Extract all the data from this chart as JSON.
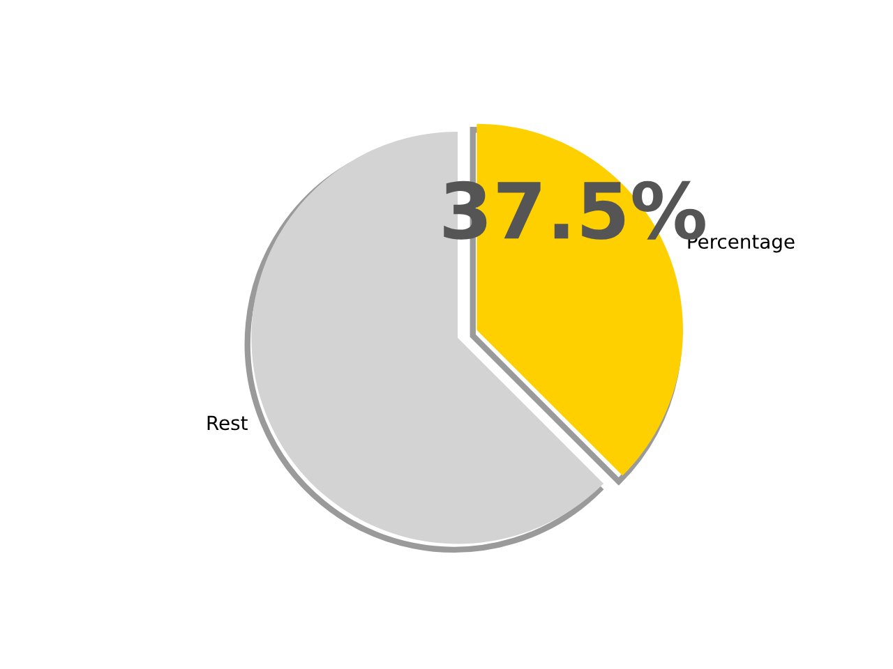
{
  "chart_data": {
    "type": "pie",
    "categories": [
      "Percentage",
      "Rest"
    ],
    "values": [
      37.5,
      62.5
    ],
    "colors": [
      "#ffd000",
      "#d3d3d3"
    ],
    "value_labels": [
      "37.5%",
      null
    ],
    "legend": false
  }
}
